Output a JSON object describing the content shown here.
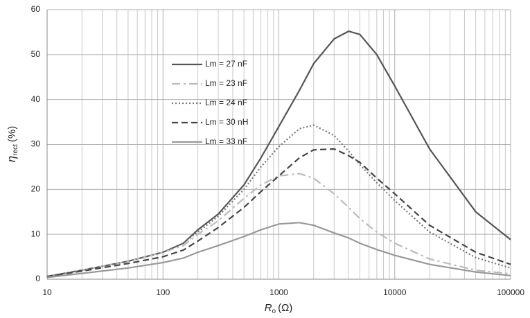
{
  "chart_data": {
    "type": "line",
    "xlabel": {
      "symbol": "R",
      "subscript": "o",
      "unit": "(Ω)"
    },
    "ylabel": {
      "symbol": "η",
      "subscript": "rect",
      "unit": "(%)"
    },
    "x": [
      10,
      20,
      50,
      100,
      150,
      200,
      300,
      500,
      700,
      1000,
      1500,
      2000,
      3000,
      4000,
      5000,
      7000,
      10000,
      20000,
      50000,
      100000
    ],
    "series": [
      {
        "name": "Lm = 27 nF",
        "color": "#555555",
        "dash": "solid",
        "values": [
          0.6,
          2,
          4,
          6,
          8,
          11,
          14.5,
          21,
          27,
          34,
          42,
          48,
          53.5,
          55.2,
          54.5,
          50,
          43,
          29,
          15,
          8.8
        ]
      },
      {
        "name": "Lm = 23 nF",
        "color": "#bbbbbb",
        "dash": "dashdot",
        "values": [
          0.6,
          2,
          4,
          6,
          7.5,
          10,
          13,
          18,
          21,
          23,
          23.5,
          22.5,
          19,
          16,
          13.5,
          10.5,
          8,
          4.5,
          2,
          1.2
        ]
      },
      {
        "name": "Lm = 24 nF",
        "color": "#777777",
        "dash": "dotted",
        "values": [
          0.6,
          2,
          4,
          6,
          8,
          10.5,
          14,
          20,
          25,
          29.5,
          33.5,
          34.3,
          32,
          28.5,
          25.5,
          21.5,
          17.5,
          10.5,
          4.8,
          2.5
        ]
      },
      {
        "name": "Lm = 30 nH",
        "color": "#444444",
        "dash": "dashed",
        "values": [
          0.6,
          1.8,
          3.5,
          5,
          6.5,
          8.5,
          11.5,
          16,
          19.5,
          23,
          27,
          28.8,
          29,
          27.5,
          26,
          22.5,
          19,
          12,
          6,
          3.3
        ]
      },
      {
        "name": "Lm = 33 nF",
        "color": "#999999",
        "dash": "solid",
        "values": [
          0.4,
          1.3,
          2.5,
          3.7,
          4.7,
          6,
          7.5,
          9.5,
          11,
          12.3,
          12.6,
          12,
          10.3,
          9.2,
          8,
          6.6,
          5.3,
          3.3,
          1.6,
          0.8
        ]
      }
    ],
    "xscale": "log",
    "xlim": [
      10,
      100000
    ],
    "xticks": [
      10,
      100,
      1000,
      10000,
      100000
    ],
    "ylim": [
      0,
      60
    ],
    "yticks": [
      0,
      10,
      20,
      30,
      40,
      50,
      60
    ],
    "grid": true
  }
}
